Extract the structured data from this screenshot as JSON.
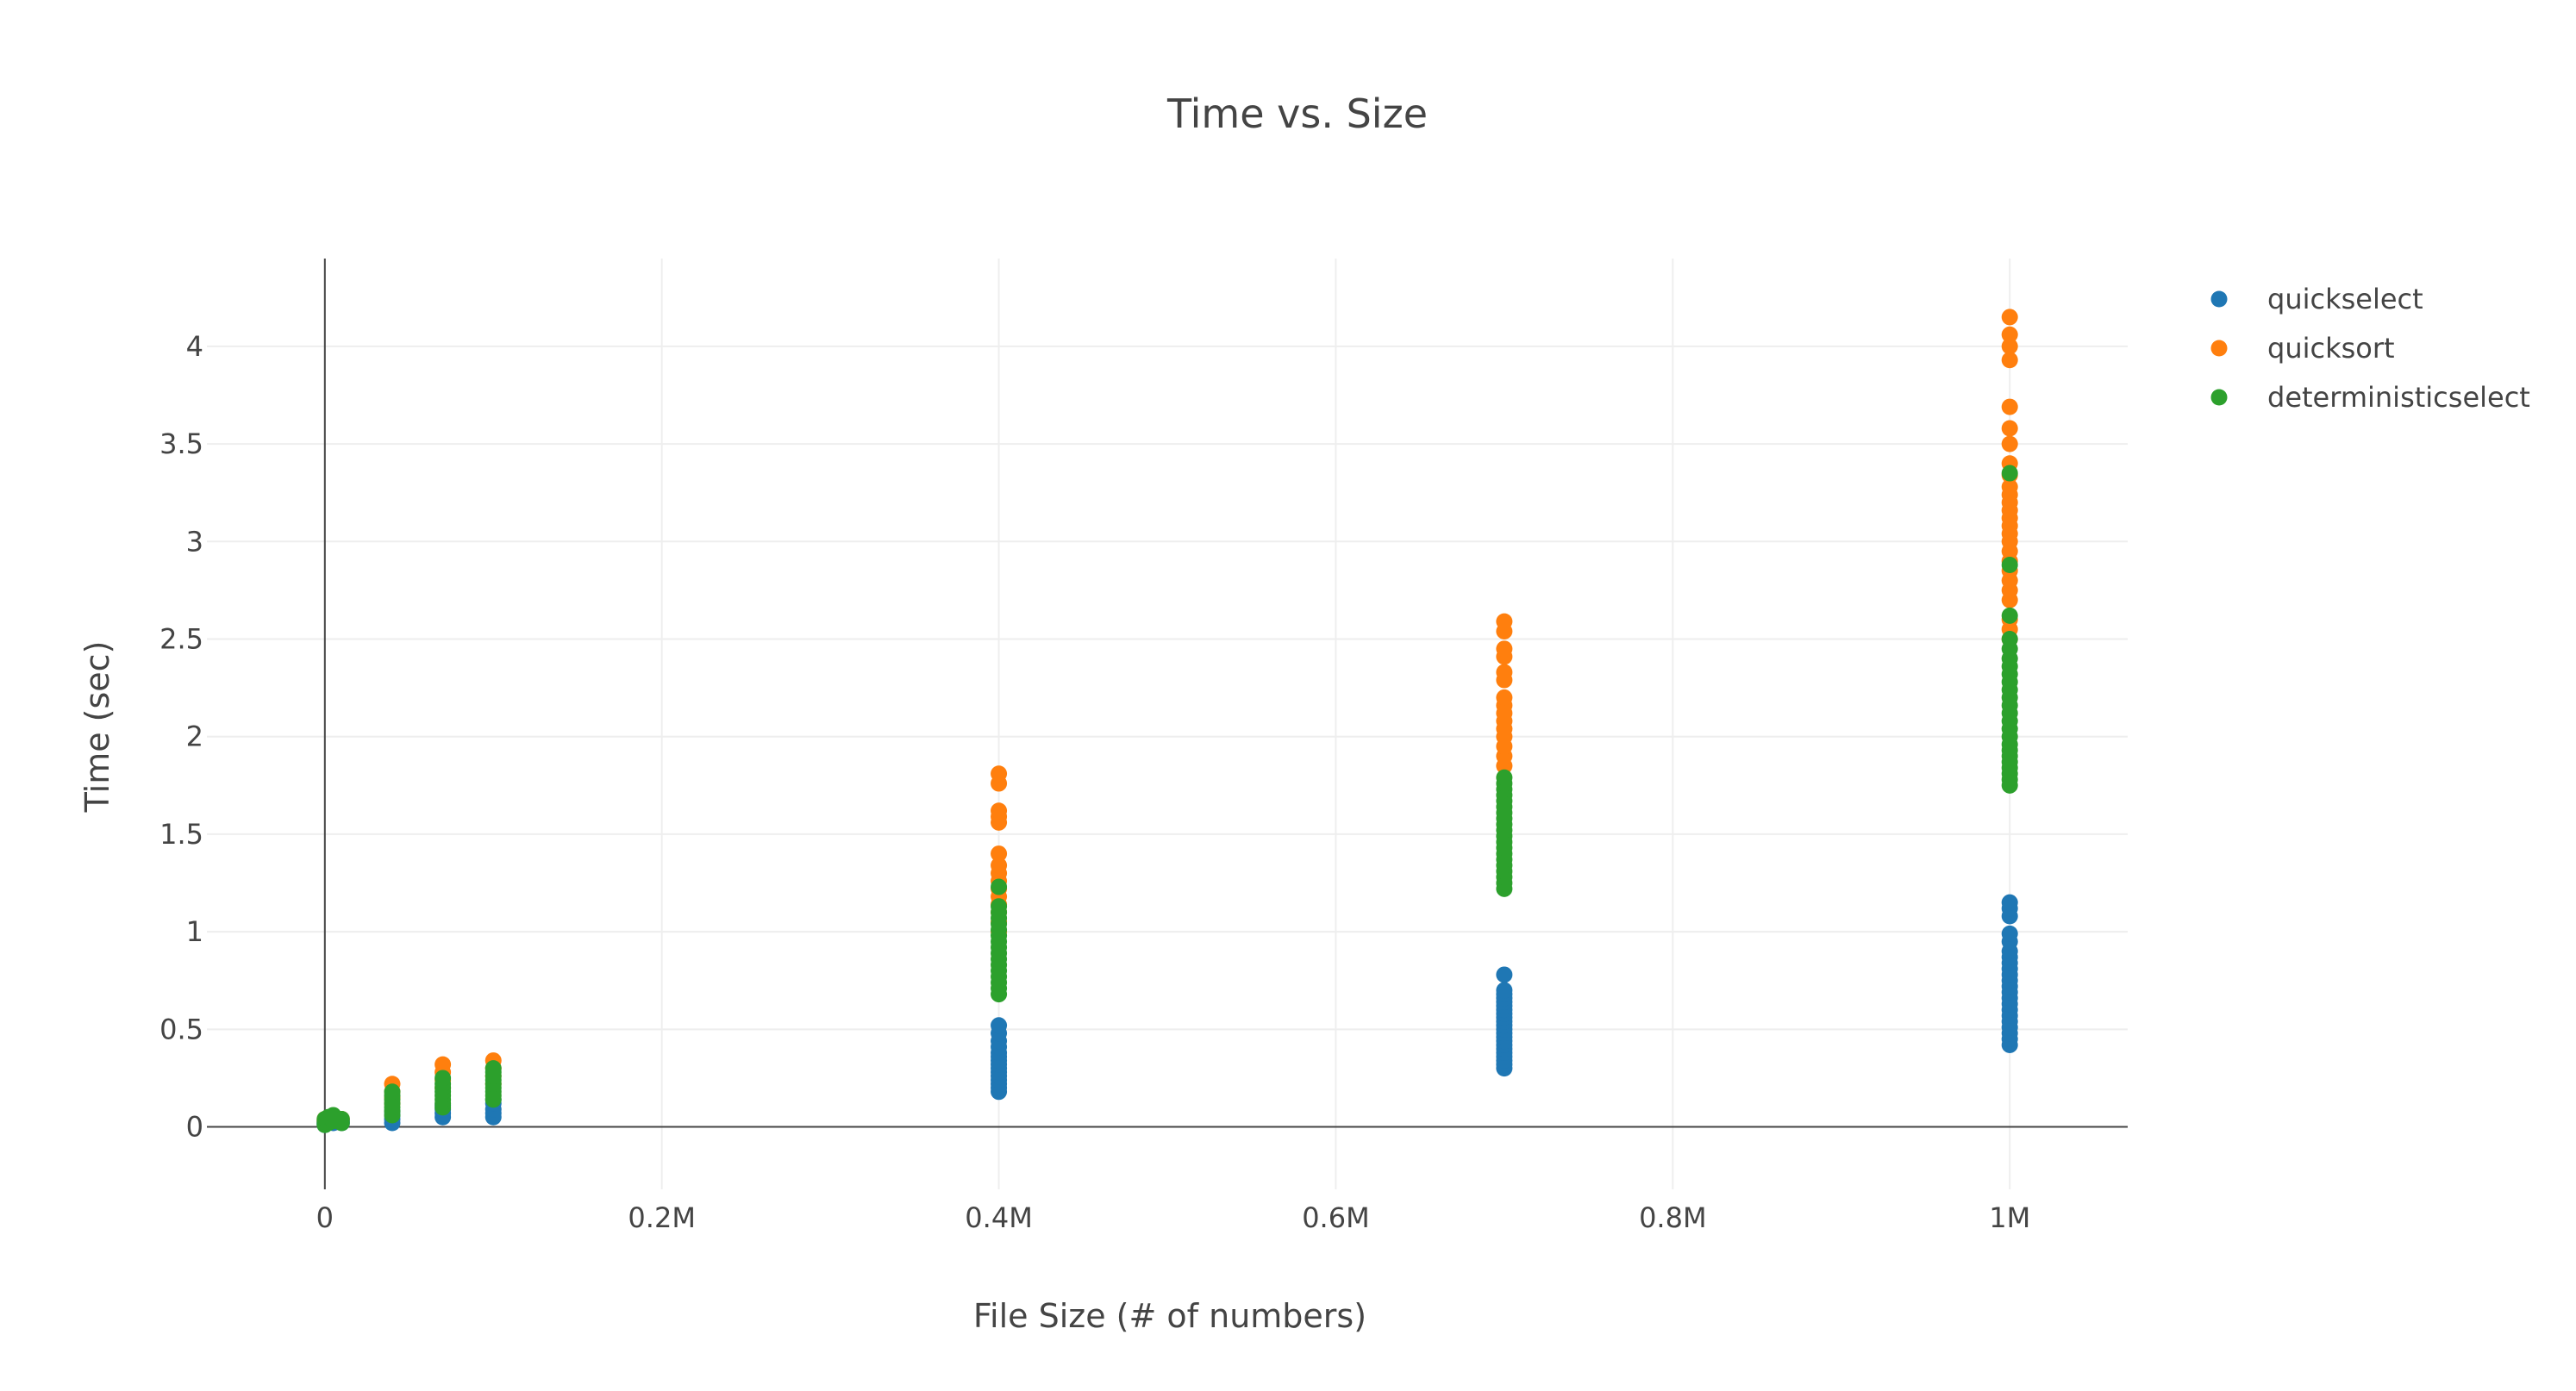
{
  "chart_data": {
    "type": "scatter",
    "title": "Time vs. Size",
    "xlabel": "File Size (# of numbers)",
    "ylabel": "Time (sec)",
    "xlim": [
      -70000,
      1070000
    ],
    "ylim": [
      -0.32,
      4.45
    ],
    "xticks": [
      0,
      200000,
      400000,
      600000,
      800000,
      1000000
    ],
    "xtick_labels": [
      "0",
      "0.2M",
      "0.4M",
      "0.6M",
      "0.8M",
      "1M"
    ],
    "yticks": [
      0,
      0.5,
      1,
      1.5,
      2,
      2.5,
      3,
      3.5,
      4
    ],
    "ytick_labels": [
      "0",
      "0.5",
      "1",
      "1.5",
      "2",
      "2.5",
      "3",
      "3.5",
      "4"
    ],
    "grid": true,
    "legend_position": "top-right",
    "series": [
      {
        "name": "quickselect",
        "color": "#1f77b4",
        "points": [
          [
            0,
            0.01
          ],
          [
            0,
            0.015
          ],
          [
            0,
            0.02
          ],
          [
            0,
            0.025
          ],
          [
            5000,
            0.02
          ],
          [
            5000,
            0.03
          ],
          [
            10000,
            0.02
          ],
          [
            10000,
            0.03
          ],
          [
            40000,
            0.02
          ],
          [
            40000,
            0.04
          ],
          [
            40000,
            0.06
          ],
          [
            40000,
            0.08
          ],
          [
            70000,
            0.05
          ],
          [
            70000,
            0.07
          ],
          [
            70000,
            0.09
          ],
          [
            70000,
            0.11
          ],
          [
            100000,
            0.05
          ],
          [
            100000,
            0.07
          ],
          [
            100000,
            0.09
          ],
          [
            100000,
            0.12
          ],
          [
            100000,
            0.14
          ],
          [
            400000,
            0.18
          ],
          [
            400000,
            0.2
          ],
          [
            400000,
            0.22
          ],
          [
            400000,
            0.24
          ],
          [
            400000,
            0.26
          ],
          [
            400000,
            0.28
          ],
          [
            400000,
            0.3
          ],
          [
            400000,
            0.32
          ],
          [
            400000,
            0.34
          ],
          [
            400000,
            0.36
          ],
          [
            400000,
            0.38
          ],
          [
            400000,
            0.41
          ],
          [
            400000,
            0.44
          ],
          [
            400000,
            0.48
          ],
          [
            400000,
            0.52
          ],
          [
            700000,
            0.3
          ],
          [
            700000,
            0.32
          ],
          [
            700000,
            0.34
          ],
          [
            700000,
            0.36
          ],
          [
            700000,
            0.38
          ],
          [
            700000,
            0.4
          ],
          [
            700000,
            0.42
          ],
          [
            700000,
            0.44
          ],
          [
            700000,
            0.46
          ],
          [
            700000,
            0.48
          ],
          [
            700000,
            0.5
          ],
          [
            700000,
            0.52
          ],
          [
            700000,
            0.54
          ],
          [
            700000,
            0.56
          ],
          [
            700000,
            0.58
          ],
          [
            700000,
            0.6
          ],
          [
            700000,
            0.62
          ],
          [
            700000,
            0.64
          ],
          [
            700000,
            0.66
          ],
          [
            700000,
            0.68
          ],
          [
            700000,
            0.7
          ],
          [
            700000,
            0.78
          ],
          [
            1000000,
            0.42
          ],
          [
            1000000,
            0.45
          ],
          [
            1000000,
            0.48
          ],
          [
            1000000,
            0.51
          ],
          [
            1000000,
            0.54
          ],
          [
            1000000,
            0.57
          ],
          [
            1000000,
            0.6
          ],
          [
            1000000,
            0.63
          ],
          [
            1000000,
            0.66
          ],
          [
            1000000,
            0.69
          ],
          [
            1000000,
            0.72
          ],
          [
            1000000,
            0.75
          ],
          [
            1000000,
            0.78
          ],
          [
            1000000,
            0.81
          ],
          [
            1000000,
            0.84
          ],
          [
            1000000,
            0.87
          ],
          [
            1000000,
            0.9
          ],
          [
            1000000,
            0.95
          ],
          [
            1000000,
            0.99
          ],
          [
            1000000,
            1.08
          ],
          [
            1000000,
            1.12
          ],
          [
            1000000,
            1.15
          ]
        ]
      },
      {
        "name": "quicksort",
        "color": "#ff7f0e",
        "points": [
          [
            0,
            0.03
          ],
          [
            0,
            0.04
          ],
          [
            5000,
            0.04
          ],
          [
            10000,
            0.04
          ],
          [
            40000,
            0.12
          ],
          [
            40000,
            0.15
          ],
          [
            40000,
            0.18
          ],
          [
            40000,
            0.22
          ],
          [
            70000,
            0.2
          ],
          [
            70000,
            0.24
          ],
          [
            70000,
            0.28
          ],
          [
            70000,
            0.32
          ],
          [
            100000,
            0.22
          ],
          [
            100000,
            0.26
          ],
          [
            100000,
            0.3
          ],
          [
            100000,
            0.34
          ],
          [
            400000,
            1.0
          ],
          [
            400000,
            1.05
          ],
          [
            400000,
            1.1
          ],
          [
            400000,
            1.14
          ],
          [
            400000,
            1.18
          ],
          [
            400000,
            1.22
          ],
          [
            400000,
            1.26
          ],
          [
            400000,
            1.3
          ],
          [
            400000,
            1.34
          ],
          [
            400000,
            1.4
          ],
          [
            400000,
            1.56
          ],
          [
            400000,
            1.59
          ],
          [
            400000,
            1.62
          ],
          [
            400000,
            1.76
          ],
          [
            400000,
            1.81
          ],
          [
            700000,
            1.85
          ],
          [
            700000,
            1.9
          ],
          [
            700000,
            1.95
          ],
          [
            700000,
            2.0
          ],
          [
            700000,
            2.04
          ],
          [
            700000,
            2.08
          ],
          [
            700000,
            2.12
          ],
          [
            700000,
            2.16
          ],
          [
            700000,
            2.2
          ],
          [
            700000,
            2.29
          ],
          [
            700000,
            2.33
          ],
          [
            700000,
            2.41
          ],
          [
            700000,
            2.45
          ],
          [
            700000,
            2.54
          ],
          [
            700000,
            2.59
          ],
          [
            1000000,
            2.5
          ],
          [
            1000000,
            2.55
          ],
          [
            1000000,
            2.6
          ],
          [
            1000000,
            2.7
          ],
          [
            1000000,
            2.75
          ],
          [
            1000000,
            2.8
          ],
          [
            1000000,
            2.85
          ],
          [
            1000000,
            2.9
          ],
          [
            1000000,
            2.95
          ],
          [
            1000000,
            3.0
          ],
          [
            1000000,
            3.04
          ],
          [
            1000000,
            3.08
          ],
          [
            1000000,
            3.12
          ],
          [
            1000000,
            3.16
          ],
          [
            1000000,
            3.2
          ],
          [
            1000000,
            3.24
          ],
          [
            1000000,
            3.28
          ],
          [
            1000000,
            3.34
          ],
          [
            1000000,
            3.4
          ],
          [
            1000000,
            3.5
          ],
          [
            1000000,
            3.58
          ],
          [
            1000000,
            3.69
          ],
          [
            1000000,
            3.93
          ],
          [
            1000000,
            4.0
          ],
          [
            1000000,
            4.06
          ],
          [
            1000000,
            4.15
          ]
        ]
      },
      {
        "name": "deterministicselect",
        "color": "#2ca02c",
        "points": [
          [
            0,
            0.01
          ],
          [
            0,
            0.02
          ],
          [
            0,
            0.03
          ],
          [
            0,
            0.04
          ],
          [
            2000,
            0.02
          ],
          [
            2000,
            0.05
          ],
          [
            5000,
            0.03
          ],
          [
            5000,
            0.06
          ],
          [
            10000,
            0.02
          ],
          [
            10000,
            0.04
          ],
          [
            40000,
            0.06
          ],
          [
            40000,
            0.08
          ],
          [
            40000,
            0.1
          ],
          [
            40000,
            0.12
          ],
          [
            40000,
            0.14
          ],
          [
            40000,
            0.16
          ],
          [
            40000,
            0.18
          ],
          [
            70000,
            0.1
          ],
          [
            70000,
            0.12
          ],
          [
            70000,
            0.14
          ],
          [
            70000,
            0.16
          ],
          [
            70000,
            0.18
          ],
          [
            70000,
            0.2
          ],
          [
            70000,
            0.22
          ],
          [
            70000,
            0.25
          ],
          [
            100000,
            0.14
          ],
          [
            100000,
            0.16
          ],
          [
            100000,
            0.18
          ],
          [
            100000,
            0.2
          ],
          [
            100000,
            0.22
          ],
          [
            100000,
            0.24
          ],
          [
            100000,
            0.26
          ],
          [
            100000,
            0.28
          ],
          [
            100000,
            0.3
          ],
          [
            400000,
            0.68
          ],
          [
            400000,
            0.71
          ],
          [
            400000,
            0.74
          ],
          [
            400000,
            0.77
          ],
          [
            400000,
            0.8
          ],
          [
            400000,
            0.83
          ],
          [
            400000,
            0.86
          ],
          [
            400000,
            0.89
          ],
          [
            400000,
            0.92
          ],
          [
            400000,
            0.95
          ],
          [
            400000,
            0.98
          ],
          [
            400000,
            1.01
          ],
          [
            400000,
            1.04
          ],
          [
            400000,
            1.07
          ],
          [
            400000,
            1.1
          ],
          [
            400000,
            1.13
          ],
          [
            400000,
            1.23
          ],
          [
            700000,
            1.22
          ],
          [
            700000,
            1.25
          ],
          [
            700000,
            1.28
          ],
          [
            700000,
            1.31
          ],
          [
            700000,
            1.34
          ],
          [
            700000,
            1.37
          ],
          [
            700000,
            1.4
          ],
          [
            700000,
            1.43
          ],
          [
            700000,
            1.46
          ],
          [
            700000,
            1.49
          ],
          [
            700000,
            1.52
          ],
          [
            700000,
            1.55
          ],
          [
            700000,
            1.58
          ],
          [
            700000,
            1.61
          ],
          [
            700000,
            1.64
          ],
          [
            700000,
            1.67
          ],
          [
            700000,
            1.7
          ],
          [
            700000,
            1.73
          ],
          [
            700000,
            1.76
          ],
          [
            700000,
            1.79
          ],
          [
            1000000,
            1.75
          ],
          [
            1000000,
            1.78
          ],
          [
            1000000,
            1.81
          ],
          [
            1000000,
            1.84
          ],
          [
            1000000,
            1.87
          ],
          [
            1000000,
            1.9
          ],
          [
            1000000,
            1.93
          ],
          [
            1000000,
            1.96
          ],
          [
            1000000,
            2.0
          ],
          [
            1000000,
            2.04
          ],
          [
            1000000,
            2.08
          ],
          [
            1000000,
            2.12
          ],
          [
            1000000,
            2.16
          ],
          [
            1000000,
            2.2
          ],
          [
            1000000,
            2.24
          ],
          [
            1000000,
            2.28
          ],
          [
            1000000,
            2.32
          ],
          [
            1000000,
            2.36
          ],
          [
            1000000,
            2.4
          ],
          [
            1000000,
            2.45
          ],
          [
            1000000,
            2.5
          ],
          [
            1000000,
            2.62
          ],
          [
            1000000,
            2.88
          ],
          [
            1000000,
            3.35
          ]
        ]
      }
    ]
  }
}
